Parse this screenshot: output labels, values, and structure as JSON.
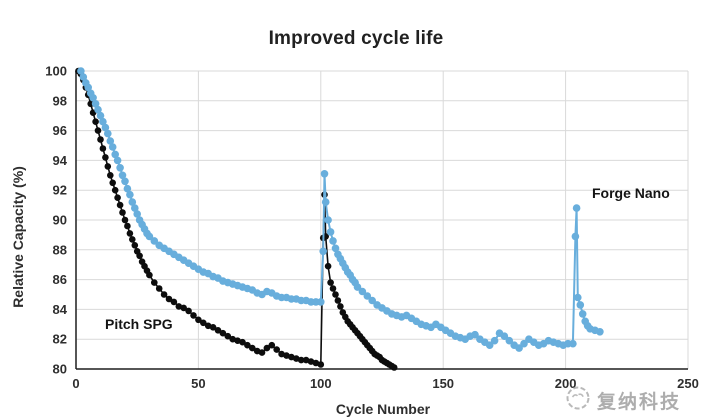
{
  "chart_data": {
    "type": "line",
    "title": "Improved cycle life",
    "xlabel": "Cycle Number",
    "ylabel": "Relative Capacity (%)",
    "xlim": [
      0,
      250
    ],
    "ylim": [
      80,
      100
    ],
    "x_ticks": [
      0,
      50,
      100,
      150,
      200,
      250
    ],
    "y_ticks": [
      80,
      82,
      84,
      86,
      88,
      90,
      92,
      94,
      96,
      98,
      100
    ],
    "grid_color": "#d9d9d9",
    "axis_color": "#1f1f1f",
    "legend_position": "free-floating labels",
    "series": [
      {
        "name": "Pitch SPG",
        "color": "#0d0d0d",
        "marker_radius": 3.3,
        "line_width": 1.6,
        "points": [
          [
            1,
            100
          ],
          [
            2,
            99.8
          ],
          [
            3,
            99.4
          ],
          [
            4,
            98.9
          ],
          [
            5,
            98.4
          ],
          [
            6,
            97.8
          ],
          [
            7,
            97.2
          ],
          [
            8,
            96.6
          ],
          [
            9,
            96
          ],
          [
            10,
            95.4
          ],
          [
            11,
            94.8
          ],
          [
            12,
            94.2
          ],
          [
            13,
            93.6
          ],
          [
            14,
            93
          ],
          [
            15,
            92.5
          ],
          [
            16,
            92
          ],
          [
            17,
            91.5
          ],
          [
            18,
            91
          ],
          [
            19,
            90.5
          ],
          [
            20,
            90
          ],
          [
            21,
            89.6
          ],
          [
            22,
            89.1
          ],
          [
            23,
            88.7
          ],
          [
            24,
            88.3
          ],
          [
            25,
            87.9
          ],
          [
            26,
            87.6
          ],
          [
            27,
            87.2
          ],
          [
            28,
            86.9
          ],
          [
            29,
            86.6
          ],
          [
            30,
            86.3
          ],
          [
            32,
            85.8
          ],
          [
            34,
            85.4
          ],
          [
            36,
            85
          ],
          [
            38,
            84.7
          ],
          [
            40,
            84.5
          ],
          [
            42,
            84.2
          ],
          [
            44,
            84.1
          ],
          [
            46,
            83.9
          ],
          [
            48,
            83.6
          ],
          [
            50,
            83.3
          ],
          [
            52,
            83.1
          ],
          [
            54,
            82.9
          ],
          [
            56,
            82.8
          ],
          [
            58,
            82.6
          ],
          [
            60,
            82.4
          ],
          [
            62,
            82.2
          ],
          [
            64,
            82
          ],
          [
            66,
            81.9
          ],
          [
            68,
            81.8
          ],
          [
            70,
            81.6
          ],
          [
            72,
            81.4
          ],
          [
            74,
            81.2
          ],
          [
            76,
            81.1
          ],
          [
            78,
            81.4
          ],
          [
            80,
            81.6
          ],
          [
            82,
            81.3
          ],
          [
            84,
            81
          ],
          [
            86,
            80.9
          ],
          [
            88,
            80.8
          ],
          [
            90,
            80.7
          ],
          [
            92,
            80.6
          ],
          [
            94,
            80.6
          ],
          [
            96,
            80.5
          ],
          [
            98,
            80.4
          ],
          [
            100,
            80.3
          ],
          [
            101,
            88.8
          ],
          [
            101.5,
            91.7
          ],
          [
            102,
            88.9
          ],
          [
            103,
            86.9
          ],
          [
            104,
            85.8
          ],
          [
            105,
            85.4
          ],
          [
            106,
            85
          ],
          [
            107,
            84.6
          ],
          [
            108,
            84.2
          ],
          [
            109,
            83.8
          ],
          [
            110,
            83.5
          ],
          [
            111,
            83.2
          ],
          [
            112,
            83
          ],
          [
            113,
            82.8
          ],
          [
            114,
            82.6
          ],
          [
            115,
            82.4
          ],
          [
            116,
            82.2
          ],
          [
            117,
            82
          ],
          [
            118,
            81.8
          ],
          [
            119,
            81.6
          ],
          [
            120,
            81.4
          ],
          [
            121,
            81.2
          ],
          [
            122,
            81
          ],
          [
            123,
            80.9
          ],
          [
            124,
            80.8
          ],
          [
            125,
            80.6
          ],
          [
            126,
            80.5
          ],
          [
            127,
            80.4
          ],
          [
            128,
            80.3
          ],
          [
            129,
            80.2
          ],
          [
            130,
            80.1
          ]
        ]
      },
      {
        "name": "Forge Nano",
        "color": "#68aedc",
        "marker_radius": 3.8,
        "line_width": 2,
        "points": [
          [
            2,
            100
          ],
          [
            3,
            99.6
          ],
          [
            4,
            99.2
          ],
          [
            5,
            98.9
          ],
          [
            6,
            98.5
          ],
          [
            7,
            98.2
          ],
          [
            8,
            97.8
          ],
          [
            9,
            97.4
          ],
          [
            10,
            97
          ],
          [
            11,
            96.6
          ],
          [
            12,
            96.2
          ],
          [
            13,
            95.8
          ],
          [
            14,
            95.3
          ],
          [
            15,
            94.9
          ],
          [
            16,
            94.4
          ],
          [
            17,
            94
          ],
          [
            18,
            93.5
          ],
          [
            19,
            93
          ],
          [
            20,
            92.6
          ],
          [
            21,
            92.1
          ],
          [
            22,
            91.7
          ],
          [
            23,
            91.2
          ],
          [
            24,
            90.8
          ],
          [
            25,
            90.4
          ],
          [
            26,
            90
          ],
          [
            27,
            89.7
          ],
          [
            28,
            89.4
          ],
          [
            29,
            89.1
          ],
          [
            30,
            88.9
          ],
          [
            32,
            88.6
          ],
          [
            34,
            88.3
          ],
          [
            36,
            88.1
          ],
          [
            38,
            87.9
          ],
          [
            40,
            87.7
          ],
          [
            42,
            87.5
          ],
          [
            44,
            87.3
          ],
          [
            46,
            87.1
          ],
          [
            48,
            86.9
          ],
          [
            50,
            86.7
          ],
          [
            52,
            86.5
          ],
          [
            54,
            86.4
          ],
          [
            56,
            86.2
          ],
          [
            58,
            86.1
          ],
          [
            60,
            85.9
          ],
          [
            62,
            85.8
          ],
          [
            64,
            85.7
          ],
          [
            66,
            85.6
          ],
          [
            68,
            85.5
          ],
          [
            70,
            85.4
          ],
          [
            72,
            85.3
          ],
          [
            74,
            85.1
          ],
          [
            76,
            85
          ],
          [
            78,
            85.2
          ],
          [
            80,
            85.1
          ],
          [
            82,
            84.9
          ],
          [
            84,
            84.8
          ],
          [
            86,
            84.8
          ],
          [
            88,
            84.7
          ],
          [
            90,
            84.7
          ],
          [
            92,
            84.6
          ],
          [
            94,
            84.6
          ],
          [
            96,
            84.5
          ],
          [
            98,
            84.5
          ],
          [
            100,
            84.5
          ],
          [
            101,
            87.9
          ],
          [
            101.5,
            93.1
          ],
          [
            102,
            91.2
          ],
          [
            103,
            90
          ],
          [
            104,
            89.2
          ],
          [
            105,
            88.6
          ],
          [
            106,
            88.1
          ],
          [
            107,
            87.7
          ],
          [
            108,
            87.4
          ],
          [
            109,
            87.1
          ],
          [
            110,
            86.8
          ],
          [
            111,
            86.5
          ],
          [
            112,
            86.3
          ],
          [
            113,
            86
          ],
          [
            114,
            85.8
          ],
          [
            115,
            85.5
          ],
          [
            117,
            85.2
          ],
          [
            119,
            84.9
          ],
          [
            121,
            84.6
          ],
          [
            123,
            84.3
          ],
          [
            125,
            84.1
          ],
          [
            127,
            83.9
          ],
          [
            129,
            83.7
          ],
          [
            131,
            83.6
          ],
          [
            133,
            83.5
          ],
          [
            135,
            83.6
          ],
          [
            137,
            83.4
          ],
          [
            139,
            83.2
          ],
          [
            141,
            83
          ],
          [
            143,
            82.9
          ],
          [
            145,
            82.8
          ],
          [
            147,
            83
          ],
          [
            149,
            82.8
          ],
          [
            151,
            82.6
          ],
          [
            153,
            82.4
          ],
          [
            155,
            82.2
          ],
          [
            157,
            82.1
          ],
          [
            159,
            82
          ],
          [
            161,
            82.2
          ],
          [
            163,
            82.3
          ],
          [
            165,
            82
          ],
          [
            167,
            81.8
          ],
          [
            169,
            81.6
          ],
          [
            171,
            81.9
          ],
          [
            173,
            82.4
          ],
          [
            175,
            82.2
          ],
          [
            177,
            81.9
          ],
          [
            179,
            81.6
          ],
          [
            181,
            81.4
          ],
          [
            183,
            81.7
          ],
          [
            185,
            82
          ],
          [
            187,
            81.8
          ],
          [
            189,
            81.6
          ],
          [
            191,
            81.7
          ],
          [
            193,
            81.9
          ],
          [
            195,
            81.8
          ],
          [
            197,
            81.7
          ],
          [
            199,
            81.6
          ],
          [
            201,
            81.7
          ],
          [
            203,
            81.7
          ],
          [
            204,
            88.9
          ],
          [
            204.5,
            90.8
          ],
          [
            205,
            84.8
          ],
          [
            206,
            84.3
          ],
          [
            207,
            83.7
          ],
          [
            208,
            83.2
          ],
          [
            209,
            82.9
          ],
          [
            210,
            82.7
          ],
          [
            212,
            82.6
          ],
          [
            214,
            82.5
          ]
        ]
      }
    ]
  },
  "watermark": {
    "text": "复纳科技",
    "color": "#979797"
  }
}
